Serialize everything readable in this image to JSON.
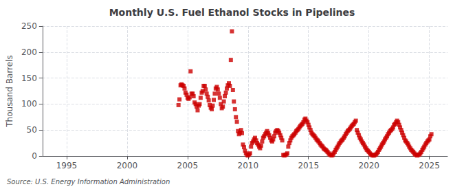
{
  "chart_data": {
    "type": "scatter",
    "title": "Monthly U.S. Fuel Ethanol Stocks in Pipelines",
    "ylabel": "Thousand Barrels",
    "annotation": "Source: U.S. Energy Information Administration",
    "color": "#cc0000",
    "marker": "square",
    "grid": true,
    "xlim": [
      1993,
      2026.5
    ],
    "ylim": [
      0,
      250
    ],
    "xticks": [
      1995,
      2000,
      2005,
      2010,
      2015,
      2020,
      2025
    ],
    "yticks": [
      0,
      50,
      100,
      150,
      200,
      250
    ],
    "x": [
      2004.25,
      2004.33,
      2004.42,
      2004.5,
      2004.58,
      2004.67,
      2004.75,
      2004.83,
      2004.92,
      2005.0,
      2005.08,
      2005.17,
      2005.25,
      2005.33,
      2005.42,
      2005.5,
      2005.58,
      2005.67,
      2005.75,
      2005.83,
      2005.92,
      2006.0,
      2006.08,
      2006.17,
      2006.25,
      2006.33,
      2006.42,
      2006.5,
      2006.58,
      2006.67,
      2006.75,
      2006.83,
      2006.92,
      2007.0,
      2007.08,
      2007.17,
      2007.25,
      2007.33,
      2007.42,
      2007.5,
      2007.58,
      2007.67,
      2007.75,
      2007.83,
      2007.92,
      2008.0,
      2008.08,
      2008.17,
      2008.25,
      2008.33,
      2008.42,
      2008.5,
      2008.58,
      2008.67,
      2008.75,
      2008.83,
      2008.92,
      2009.0,
      2009.08,
      2009.17,
      2009.25,
      2009.33,
      2009.42,
      2009.5,
      2009.58,
      2009.67,
      2009.75,
      2009.83,
      2009.92,
      2010.0,
      2010.08,
      2010.17,
      2010.25,
      2010.33,
      2010.42,
      2010.5,
      2010.58,
      2010.67,
      2010.75,
      2010.83,
      2010.92,
      2011.0,
      2011.08,
      2011.17,
      2011.25,
      2011.33,
      2011.42,
      2011.5,
      2011.58,
      2011.67,
      2011.75,
      2011.83,
      2011.92,
      2012.0,
      2012.08,
      2012.17,
      2012.25,
      2012.33,
      2012.42,
      2012.5,
      2012.58,
      2012.67,
      2012.75,
      2012.83,
      2012.92,
      2013.0,
      2013.08,
      2013.17,
      2013.25,
      2013.33,
      2013.42,
      2013.5,
      2013.58,
      2013.67,
      2013.75,
      2013.83,
      2013.92,
      2014.0,
      2014.08,
      2014.17,
      2014.25,
      2014.33,
      2014.42,
      2014.5,
      2014.58,
      2014.67,
      2014.75,
      2014.83,
      2014.92,
      2015.0,
      2015.08,
      2015.17,
      2015.25,
      2015.33,
      2015.42,
      2015.5,
      2015.58,
      2015.67,
      2015.75,
      2015.83,
      2015.92,
      2016.0,
      2016.08,
      2016.17,
      2016.25,
      2016.33,
      2016.42,
      2016.5,
      2016.58,
      2016.67,
      2016.75,
      2016.83,
      2016.92,
      2017.0,
      2017.08,
      2017.17,
      2017.25,
      2017.33,
      2017.42,
      2017.5,
      2017.58,
      2017.67,
      2017.75,
      2017.83,
      2017.92,
      2018.0,
      2018.08,
      2018.17,
      2018.25,
      2018.33,
      2018.42,
      2018.5,
      2018.58,
      2018.67,
      2018.75,
      2018.83,
      2018.92,
      2019.0,
      2019.08,
      2019.17,
      2019.25,
      2019.33,
      2019.42,
      2019.5,
      2019.58,
      2019.67,
      2019.75,
      2019.83,
      2019.92,
      2020.0,
      2020.08,
      2020.17,
      2020.25,
      2020.33,
      2020.42,
      2020.5,
      2020.58,
      2020.67,
      2020.75,
      2020.83,
      2020.92,
      2021.0,
      2021.08,
      2021.17,
      2021.25,
      2021.33,
      2021.42,
      2021.5,
      2021.58,
      2021.67,
      2021.75,
      2021.83,
      2021.92,
      2022.0,
      2022.08,
      2022.17,
      2022.25,
      2022.33,
      2022.42,
      2022.5,
      2022.58,
      2022.67,
      2022.75,
      2022.83,
      2022.92,
      2023.0,
      2023.08,
      2023.17,
      2023.25,
      2023.33,
      2023.42,
      2023.5,
      2023.58,
      2023.67,
      2023.75,
      2023.83,
      2023.92,
      2024.0,
      2024.08,
      2024.17,
      2024.25,
      2024.33,
      2024.42,
      2024.5,
      2024.58,
      2024.67,
      2024.75,
      2024.83,
      2024.92,
      2025.0,
      2025.08,
      2025.17
    ],
    "values": [
      98,
      109,
      136,
      138,
      136,
      135,
      130,
      122,
      118,
      112,
      110,
      113,
      163,
      120,
      120,
      115,
      103,
      100,
      95,
      88,
      97,
      100,
      112,
      122,
      125,
      135,
      135,
      128,
      120,
      114,
      107,
      98,
      93,
      90,
      97,
      108,
      120,
      130,
      133,
      128,
      120,
      112,
      100,
      92,
      95,
      105,
      115,
      122,
      130,
      136,
      140,
      135,
      185,
      240,
      127,
      105,
      90,
      75,
      66,
      48,
      42,
      45,
      50,
      44,
      22,
      17,
      10,
      5,
      2,
      1,
      3,
      5,
      18,
      25,
      28,
      32,
      35,
      30,
      25,
      22,
      18,
      15,
      20,
      28,
      35,
      38,
      42,
      45,
      48,
      44,
      40,
      35,
      30,
      28,
      32,
      38,
      45,
      48,
      50,
      48,
      45,
      40,
      35,
      30,
      2,
      1,
      2,
      3,
      5,
      18,
      25,
      30,
      35,
      38,
      40,
      42,
      45,
      48,
      50,
      52,
      55,
      58,
      60,
      62,
      65,
      70,
      72,
      68,
      65,
      60,
      55,
      50,
      45,
      42,
      40,
      38,
      35,
      32,
      30,
      28,
      25,
      22,
      20,
      18,
      15,
      13,
      12,
      10,
      8,
      5,
      3,
      2,
      1,
      2,
      5,
      8,
      12,
      15,
      18,
      22,
      25,
      28,
      30,
      32,
      35,
      38,
      42,
      45,
      48,
      50,
      52,
      55,
      58,
      60,
      62,
      65,
      68,
      50,
      45,
      40,
      35,
      32,
      28,
      25,
      22,
      18,
      15,
      12,
      10,
      8,
      5,
      3,
      2,
      1,
      1,
      2,
      3,
      5,
      8,
      12,
      15,
      18,
      22,
      25,
      28,
      32,
      35,
      38,
      42,
      45,
      48,
      50,
      52,
      55,
      60,
      62,
      65,
      68,
      65,
      60,
      55,
      50,
      45,
      40,
      35,
      30,
      28,
      25,
      22,
      18,
      15,
      12,
      10,
      8,
      5,
      3,
      2,
      1,
      2,
      3,
      5,
      8,
      12,
      15,
      18,
      22,
      25,
      28,
      30,
      32,
      38,
      42
    ]
  }
}
